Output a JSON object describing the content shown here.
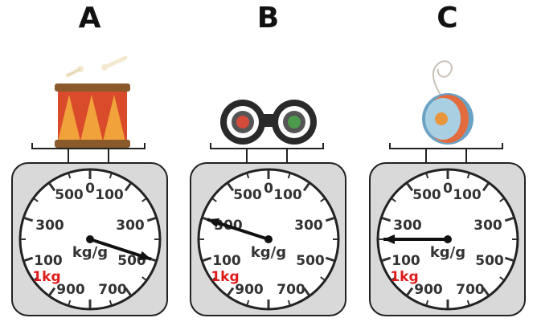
{
  "scales": [
    {
      "label": "A",
      "object_icon": "drum-icon",
      "needle_reading_g": 300,
      "dial": {
        "top": "0",
        "marks": [
          "100",
          "300",
          "500",
          "700",
          "900",
          "100",
          "300",
          "500"
        ],
        "unit": "kg/g",
        "red": "1kg"
      }
    },
    {
      "label": "B",
      "object_icon": "binoculars-icon",
      "needle_reading_g": 800,
      "dial": {
        "top": "0",
        "marks": [
          "100",
          "300",
          "500",
          "700",
          "900",
          "100",
          "300",
          "500"
        ],
        "unit": "kg/g",
        "red": "1kg"
      }
    },
    {
      "label": "C",
      "object_icon": "yoyo-icon",
      "needle_reading_g": 750,
      "dial": {
        "top": "0",
        "marks": [
          "100",
          "300",
          "500",
          "700",
          "900",
          "100",
          "300",
          "500"
        ],
        "unit": "kg/g",
        "red": "1kg"
      }
    }
  ],
  "colors": {
    "scale_body": "#d9d9d9",
    "outline": "#222222",
    "red_label": "#e01b1b"
  }
}
